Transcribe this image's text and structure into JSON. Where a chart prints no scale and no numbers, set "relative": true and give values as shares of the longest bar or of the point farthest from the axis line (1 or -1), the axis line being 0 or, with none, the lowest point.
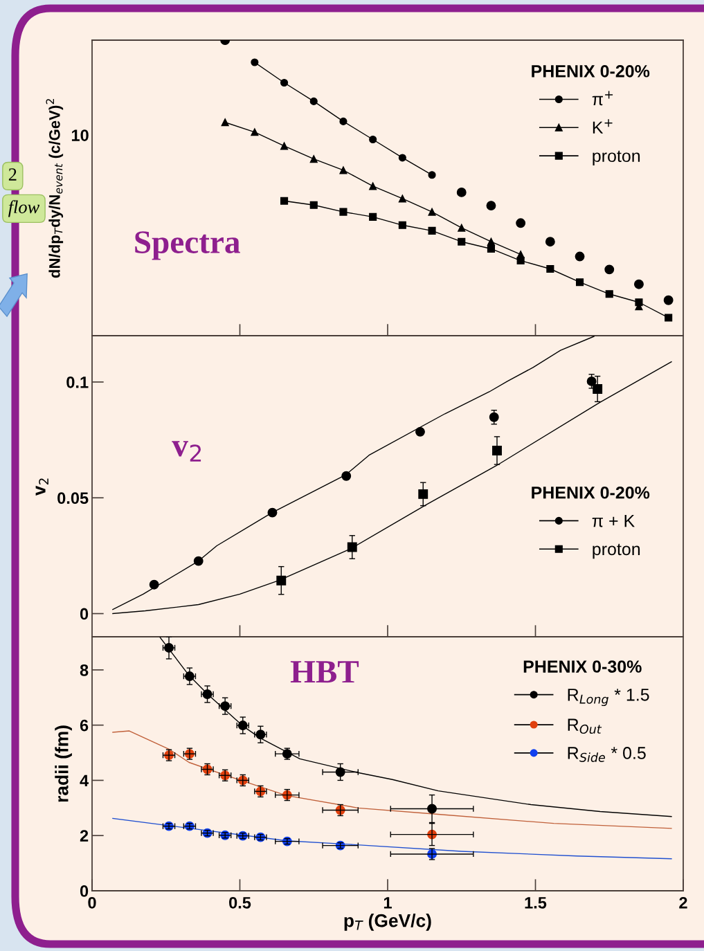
{
  "chart_data": [
    {
      "type": "line",
      "relative": true,
      "ylabel": "dN/dp$_{T}$dy/N$_{event}$ (c/GeV)$^{2}$",
      "xlim": [
        0,
        2
      ],
      "xticks": [
        {
          "value": 0.5,
          "label": null
        },
        {
          "value": 1,
          "label": null
        },
        {
          "value": 1.5,
          "label": null
        }
      ],
      "tick_labels": false,
      "legend": "top right",
      "legend_title": "PHENIX 0-20%",
      "annotations": [
        "Spectra",
        "10",
        "2",
        "flow"
      ],
      "series": [
        {
          "name": "π$^{+}$",
          "marker": "circle",
          "color": "#000000",
          "x": [
            0.55,
            0.65,
            0.75,
            0.85,
            0.95,
            1.05,
            1.15
          ],
          "values": [
            0.925,
            0.856,
            0.793,
            0.725,
            0.664,
            0.602,
            0.544
          ]
        },
        {
          "type": "scatter",
          "marker": "circle",
          "color": "#000000",
          "x": [
            0.45,
            1.25,
            1.35,
            1.45,
            1.55,
            1.65,
            1.75,
            1.85,
            1.95
          ],
          "values": [
            1.0,
            0.485,
            0.44,
            0.381,
            0.318,
            0.268,
            0.224,
            0.174,
            0.12
          ]
        },
        {
          "name": "K$^{+}$",
          "marker": "triangle",
          "color": "#000000",
          "x": [
            0.45,
            0.55,
            0.65,
            0.75,
            0.85,
            0.95,
            1.05,
            1.15,
            1.25,
            1.35,
            1.45,
            1.55,
            1.65,
            1.75,
            1.85
          ],
          "values": [
            0.722,
            0.689,
            0.642,
            0.598,
            0.56,
            0.506,
            0.464,
            0.419,
            0.365,
            0.318,
            0.275,
            null,
            null,
            null,
            0.099
          ]
        },
        {
          "name": "proton",
          "marker": "square",
          "color": "#000000",
          "x": [
            0.65,
            0.75,
            0.85,
            0.95,
            1.05,
            1.15,
            1.25,
            1.35,
            1.45,
            1.55,
            1.65,
            1.75,
            1.85,
            1.95
          ],
          "values": [
            0.456,
            0.442,
            0.419,
            0.402,
            0.374,
            0.355,
            0.318,
            0.294,
            0.254,
            0.226,
            0.181,
            0.141,
            0.113,
            0.061
          ]
        }
      ]
    },
    {
      "type": "line",
      "ylabel": "v$_{2}$",
      "xlim": [
        0,
        2
      ],
      "xticks": [
        {
          "value": 0.5,
          "label": null
        },
        {
          "value": 1,
          "label": null
        },
        {
          "value": 1.5,
          "label": null
        }
      ],
      "ylim": [
        -0.01,
        0.12
      ],
      "yticks": [
        0,
        0.05,
        0.1
      ],
      "tick_labels": "y",
      "legend": "right",
      "legend_title": "PHENIX 0-20%",
      "annotations": [
        "v$_{2}$"
      ],
      "series": [
        {
          "marker": "none",
          "color": "#000000",
          "x": [
            0.07,
            0.173,
            0.36,
            0.422,
            0.609,
            0.859,
            0.937,
            1.194,
            1.344,
            1.405,
            1.492,
            1.585,
            1.698
          ],
          "values": [
            0.0018,
            0.0084,
            0.0227,
            0.0293,
            0.0436,
            0.06,
            0.0684,
            0.0863,
            0.0958,
            0.1003,
            0.1063,
            0.1137,
            0.1197
          ]
        },
        {
          "marker": "none",
          "color": "#000000",
          "x": [
            0.07,
            0.18,
            0.36,
            0.5,
            0.632,
            0.876,
            1.133,
            1.368,
            1.719,
            1.96
          ],
          "values": [
            0,
            0.0012,
            0.0039,
            0.0084,
            0.0143,
            0.0281,
            0.0472,
            0.0639,
            0.0913,
            0.1087
          ]
        },
        {
          "name": "π + K",
          "type": "scatter",
          "marker": "circle",
          "color": "#000000",
          "x": [
            0.21,
            0.36,
            0.61,
            0.86,
            1.11,
            1.36,
            1.69
          ],
          "values": [
            0.0125,
            0.0227,
            0.0436,
            0.0594,
            0.0785,
            0.0848,
            0.1003
          ],
          "errors": [
            null,
            null,
            null,
            null,
            0.001,
            0.003,
            0.003
          ]
        },
        {
          "name": "proton",
          "type": "scatter",
          "marker": "square",
          "color": "#000000",
          "x": [
            0.64,
            0.88,
            1.12,
            1.37,
            1.71
          ],
          "values": [
            0.0143,
            0.0287,
            0.0516,
            0.0704,
            0.097
          ],
          "errors": [
            0.006,
            0.005,
            0.005,
            0.006,
            0.0055
          ]
        }
      ]
    },
    {
      "type": "line",
      "xlabel": "p$_{T}$ (GeV/c)",
      "ylabel": "radii (fm)",
      "xlim": [
        0,
        2
      ],
      "xticks": [
        0,
        0.5,
        1,
        1.5,
        2
      ],
      "ylim": [
        0,
        9.2
      ],
      "yticks": [
        0,
        2,
        4,
        6,
        8
      ],
      "legend": "top right",
      "legend_title": "PHENIX 0-30%",
      "annotations": [
        "HBT"
      ],
      "series": [
        {
          "marker": "none",
          "color": "#000000",
          "x": [
            0.23,
            0.328,
            0.391,
            0.51,
            0.569,
            0.703,
            0.899,
            1.016,
            1.171,
            1.485,
            1.719,
            1.96
          ],
          "values": [
            9.18,
            7.8,
            7.12,
            5.97,
            5.53,
            4.78,
            4.28,
            4.03,
            3.62,
            3.12,
            2.87,
            2.69
          ]
        },
        {
          "marker": "none",
          "color": "#c0603a",
          "x": [
            0.07,
            0.126,
            0.26,
            0.328,
            0.447,
            0.658,
            0.9,
            1.171,
            1.562,
            1.96
          ],
          "values": [
            5.74,
            5.79,
            5.13,
            4.65,
            4.2,
            3.45,
            3.0,
            2.77,
            2.44,
            2.26
          ]
        },
        {
          "marker": "none",
          "color": "#2050d0",
          "x": [
            0.07,
            0.26,
            0.658,
            0.859,
            1.25,
            1.64,
            1.96
          ],
          "values": [
            2.62,
            2.36,
            1.81,
            1.69,
            1.43,
            1.26,
            1.16
          ]
        },
        {
          "name": "R$_{Long}$ * 1.5",
          "type": "scatter",
          "marker": "circle",
          "color": "#000000",
          "x": [
            0.26,
            0.33,
            0.39,
            0.45,
            0.51,
            0.57,
            0.66,
            0.84,
            1.15
          ],
          "values": [
            8.8,
            7.77,
            7.12,
            6.69,
            5.99,
            5.66,
            4.96,
            4.3,
            2.97
          ],
          "errors": [
            0.4,
            0.3,
            0.3,
            0.3,
            0.3,
            0.3,
            0.2,
            0.3,
            0.5
          ],
          "xerrors": [
            0.02,
            0.02,
            0.02,
            0.02,
            0.02,
            0.02,
            0.04,
            0.06,
            0.14
          ]
        },
        {
          "name": "R$_{Out}$",
          "type": "scatter",
          "marker": "circle",
          "color": "#e0400e",
          "x": [
            0.26,
            0.33,
            0.39,
            0.45,
            0.51,
            0.57,
            0.66,
            0.84,
            1.15
          ],
          "values": [
            4.91,
            4.96,
            4.4,
            4.18,
            4.0,
            3.6,
            3.47,
            2.92,
            2.04
          ],
          "errors": [
            0.2,
            0.2,
            0.2,
            0.2,
            0.2,
            0.2,
            0.2,
            0.2,
            0.4
          ],
          "xerrors": [
            0.02,
            0.02,
            0.02,
            0.02,
            0.02,
            0.02,
            0.04,
            0.06,
            0.14
          ]
        },
        {
          "name": "R$_{Side}$ * 0.5",
          "type": "scatter",
          "marker": "circle",
          "color": "#1040f0",
          "x": [
            0.26,
            0.33,
            0.39,
            0.45,
            0.51,
            0.57,
            0.66,
            0.84,
            1.15
          ],
          "values": [
            2.34,
            2.34,
            2.09,
            2.01,
            1.99,
            1.94,
            1.79,
            1.64,
            1.33
          ],
          "errors": [
            0.1,
            0.1,
            0.1,
            0.1,
            0.1,
            0.1,
            0.1,
            0.1,
            0.2
          ],
          "xerrors": [
            0.02,
            0.02,
            0.02,
            0.02,
            0.02,
            0.02,
            0.04,
            0.06,
            0.14
          ]
        }
      ]
    }
  ]
}
